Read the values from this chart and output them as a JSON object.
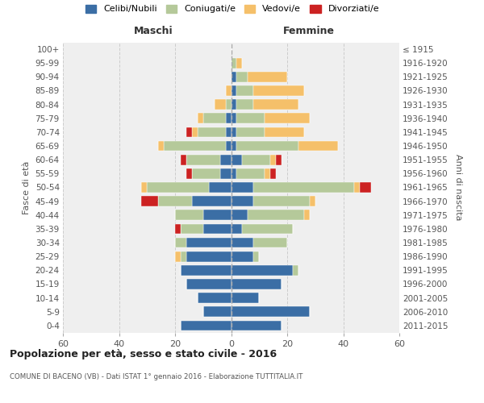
{
  "age_groups": [
    "100+",
    "95-99",
    "90-94",
    "85-89",
    "80-84",
    "75-79",
    "70-74",
    "65-69",
    "60-64",
    "55-59",
    "50-54",
    "45-49",
    "40-44",
    "35-39",
    "30-34",
    "25-29",
    "20-24",
    "15-19",
    "10-14",
    "5-9",
    "0-4"
  ],
  "birth_years": [
    "≤ 1915",
    "1916-1920",
    "1921-1925",
    "1926-1930",
    "1931-1935",
    "1936-1940",
    "1941-1945",
    "1946-1950",
    "1951-1955",
    "1956-1960",
    "1961-1965",
    "1966-1970",
    "1971-1975",
    "1976-1980",
    "1981-1985",
    "1986-1990",
    "1991-1995",
    "1996-2000",
    "2001-2005",
    "2006-2010",
    "2011-2015"
  ],
  "maschi_celibi": [
    0,
    0,
    0,
    0,
    0,
    2,
    2,
    2,
    4,
    4,
    8,
    14,
    10,
    10,
    16,
    16,
    18,
    16,
    12,
    10,
    18
  ],
  "maschi_coniugati": [
    0,
    0,
    0,
    0,
    2,
    8,
    10,
    22,
    12,
    10,
    22,
    12,
    10,
    8,
    4,
    2,
    0,
    0,
    0,
    0,
    0
  ],
  "maschi_vedovi": [
    0,
    0,
    0,
    2,
    4,
    2,
    2,
    2,
    0,
    0,
    2,
    0,
    0,
    0,
    0,
    2,
    0,
    0,
    0,
    0,
    0
  ],
  "maschi_divorziati": [
    0,
    0,
    0,
    0,
    0,
    0,
    2,
    0,
    2,
    2,
    0,
    6,
    0,
    2,
    0,
    0,
    0,
    0,
    0,
    0,
    0
  ],
  "femmine_nubili": [
    0,
    0,
    2,
    2,
    2,
    2,
    2,
    2,
    4,
    2,
    8,
    8,
    6,
    4,
    8,
    8,
    22,
    18,
    10,
    28,
    18
  ],
  "femmine_coniugate": [
    0,
    2,
    4,
    6,
    6,
    10,
    10,
    22,
    10,
    10,
    36,
    20,
    20,
    18,
    12,
    2,
    2,
    0,
    0,
    0,
    0
  ],
  "femmine_vedove": [
    0,
    2,
    14,
    18,
    16,
    16,
    14,
    14,
    2,
    2,
    2,
    2,
    2,
    0,
    0,
    0,
    0,
    0,
    0,
    0,
    0
  ],
  "femmine_divorziate": [
    0,
    0,
    0,
    0,
    0,
    0,
    0,
    0,
    2,
    2,
    4,
    0,
    0,
    0,
    0,
    0,
    0,
    0,
    0,
    0,
    0
  ],
  "color_celibi": "#3b6ea5",
  "color_coniugati": "#b5c99a",
  "color_vedovi": "#f5c06a",
  "color_divorziati": "#cc2222",
  "bg_color": "#efefef",
  "grid_color": "#cccccc",
  "xlim": 60,
  "title": "Popolazione per età, sesso e stato civile - 2016",
  "subtitle": "COMUNE DI BACENO (VB) - Dati ISTAT 1° gennaio 2016 - Elaborazione TUTTITALIA.IT",
  "legend_labels": [
    "Celibi/Nubili",
    "Coniugati/e",
    "Vedovi/e",
    "Divorziati/e"
  ],
  "label_maschi": "Maschi",
  "label_femmine": "Femmine",
  "ylabel_left": "Fasce di età",
  "ylabel_right": "Anni di nascita"
}
